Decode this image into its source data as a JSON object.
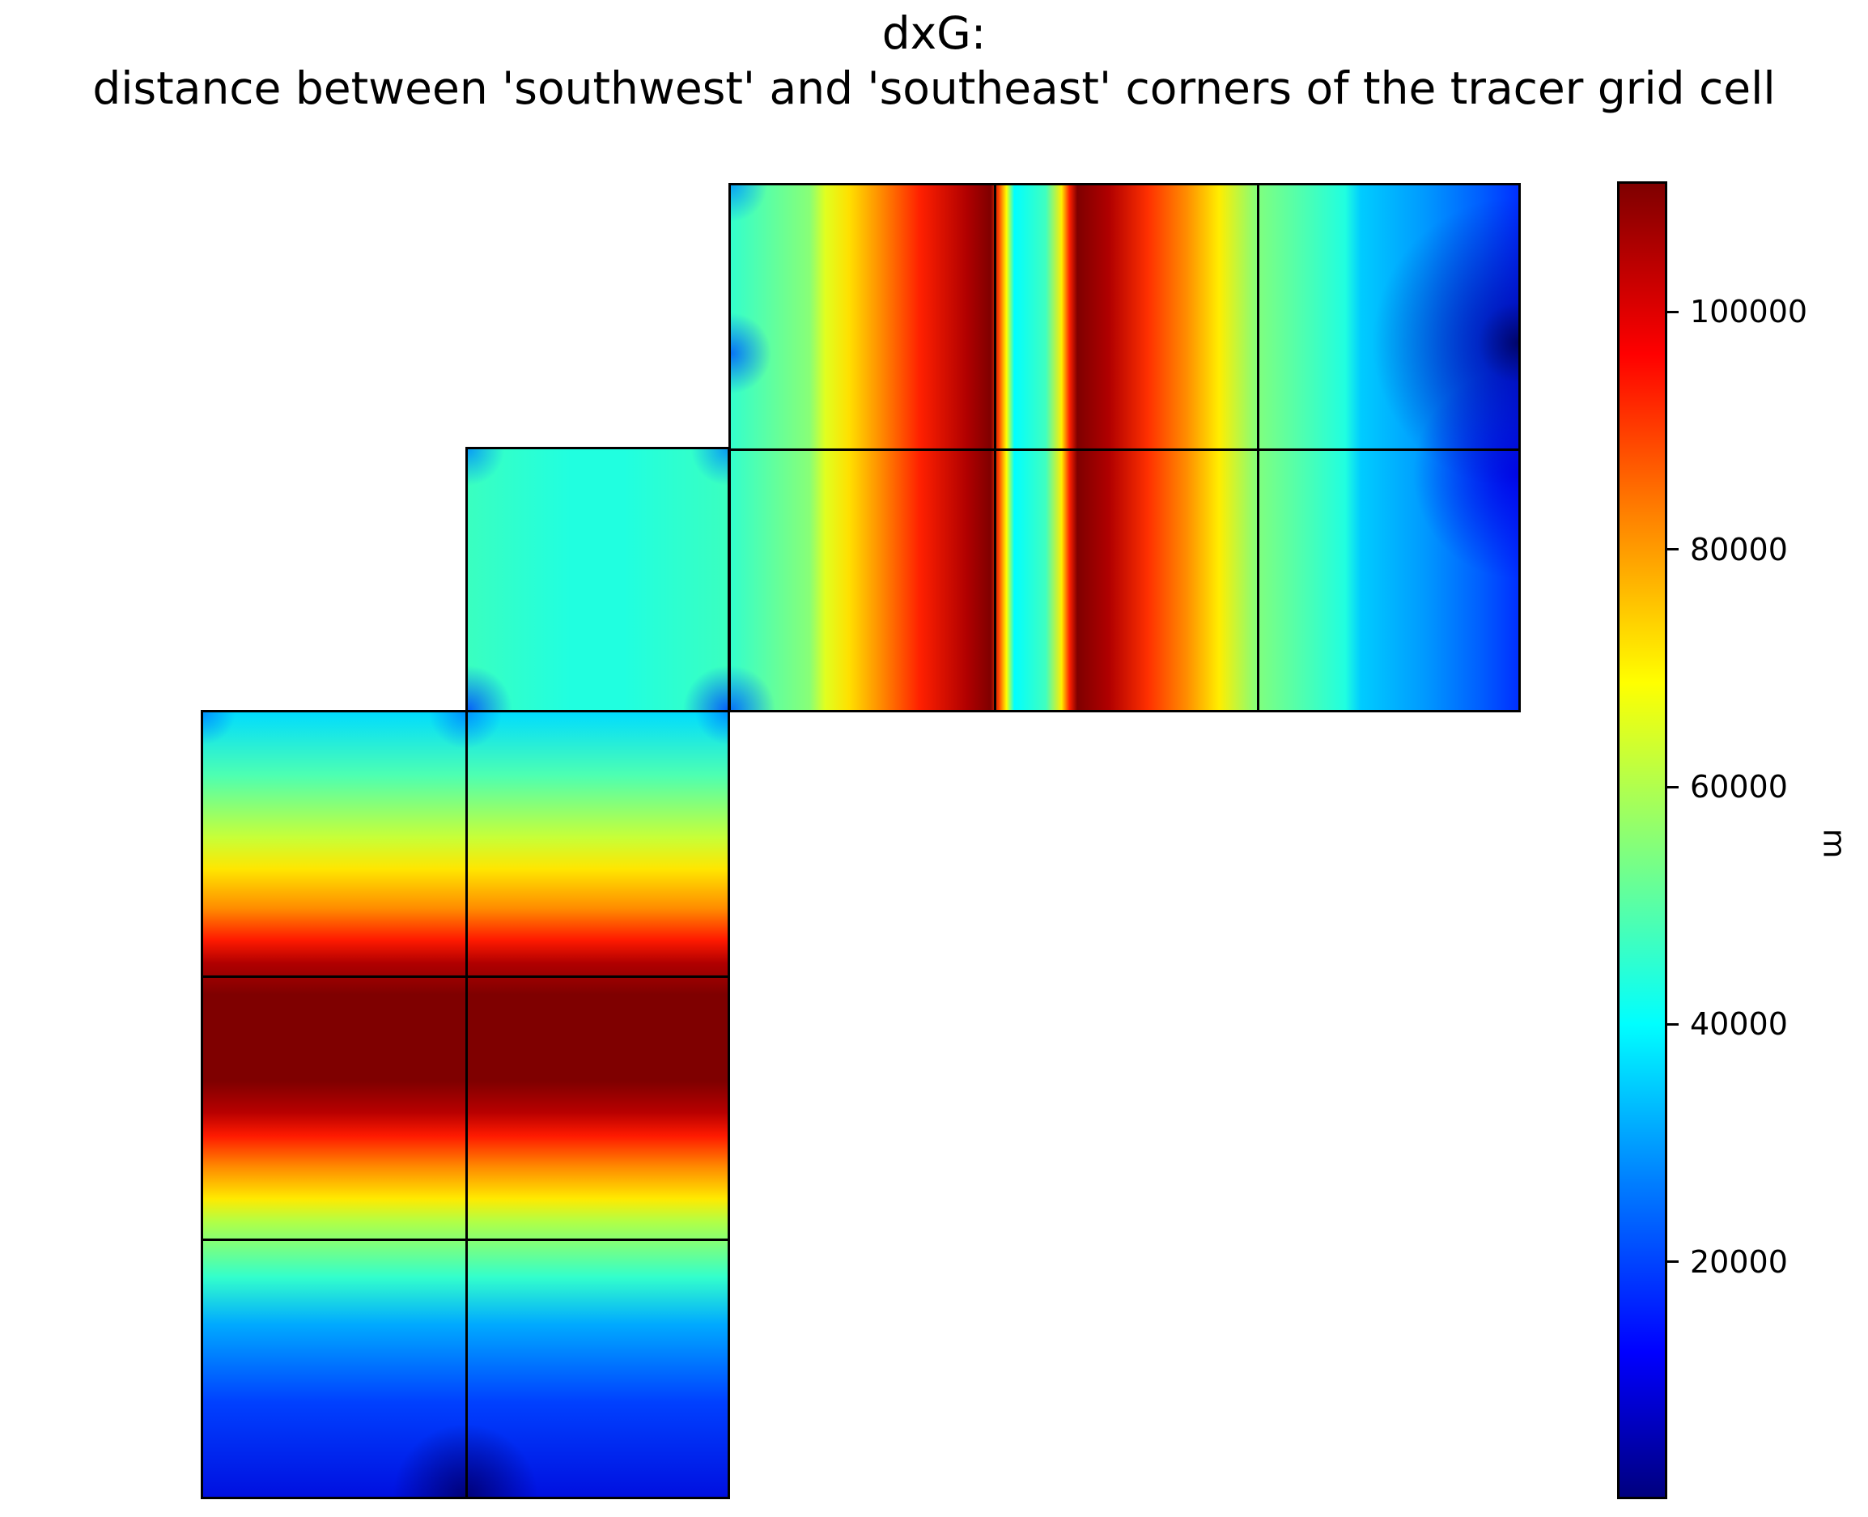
{
  "chart_data": {
    "type": "heatmap",
    "title_line1": "dxG:",
    "title_line2": "distance between 'southwest' and 'southeast' corners of the tracer grid cell",
    "colormap": "jet",
    "colorbar": {
      "label": "m",
      "ticks": [
        20000,
        40000,
        60000,
        80000,
        100000
      ],
      "tick_labels": [
        "20000",
        "40000",
        "60000",
        "80000",
        "100000"
      ],
      "range": [
        0,
        111000
      ]
    },
    "faces": [
      {
        "name": "face-bottom-left",
        "pattern": "horizontal-bands"
      },
      {
        "name": "face-middle",
        "pattern": "uniform-mid"
      },
      {
        "name": "face-top-right",
        "pattern": "vertical-bands"
      }
    ],
    "colors": {
      "dark-red": "#7f0000",
      "red": "#ff0000",
      "orange": "#ff7f00",
      "yellow": "#ffff00",
      "green": "#7fff7f",
      "cyan": "#00ffff",
      "light-blue": "#007fff",
      "blue": "#0000ff",
      "navy": "#00007f"
    }
  }
}
